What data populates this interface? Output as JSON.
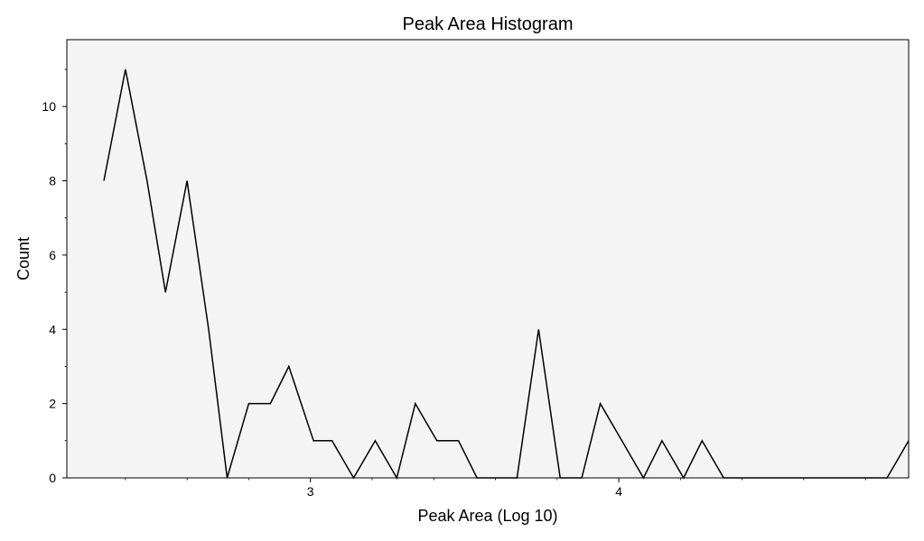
{
  "chart_data": {
    "type": "line",
    "title": "Peak Area Histogram",
    "xlabel": "Peak Area (Log 10)",
    "ylabel": "Count",
    "xlim": [
      2.21,
      4.94
    ],
    "ylim": [
      0,
      11.8
    ],
    "x_major_ticks": [
      3,
      4
    ],
    "x_major_tick_labels": [
      "3",
      "4"
    ],
    "x_minor_ticks": [
      2.2,
      2.4,
      2.6,
      2.8,
      3.2,
      3.4,
      3.6,
      3.8,
      4.2,
      4.4,
      4.6,
      4.8
    ],
    "y_major_ticks": [
      0,
      2,
      4,
      6,
      8,
      10
    ],
    "y_major_tick_labels": [
      "0",
      "2",
      "4",
      "6",
      "8",
      "10"
    ],
    "y_minor_ticks": [
      1,
      3,
      5,
      7,
      9,
      11
    ],
    "grid": false,
    "plot_background": "#f4f4f4",
    "line_color": "#000000",
    "series": [
      {
        "x": [
          2.33,
          2.4,
          2.47,
          2.53,
          2.6,
          2.67,
          2.73,
          2.8,
          2.87,
          2.93,
          3.01,
          3.07,
          3.14,
          3.21,
          3.28,
          3.34,
          3.41,
          3.48,
          3.54,
          3.61,
          3.67,
          3.74,
          3.81,
          3.88,
          3.94,
          4.01,
          4.08,
          4.14,
          4.21,
          4.27,
          4.34,
          4.41,
          4.48,
          4.55,
          4.61,
          4.68,
          4.74,
          4.81,
          4.87,
          4.94
        ],
        "values": [
          8,
          11,
          8,
          5,
          8,
          4,
          0,
          2,
          2,
          3,
          1,
          1,
          0,
          1,
          0,
          2,
          1,
          1,
          0,
          0,
          0,
          4,
          0,
          0,
          2,
          1,
          0,
          1,
          0,
          1,
          0,
          0,
          0,
          0,
          0,
          0,
          0,
          0,
          0,
          1
        ]
      }
    ]
  }
}
